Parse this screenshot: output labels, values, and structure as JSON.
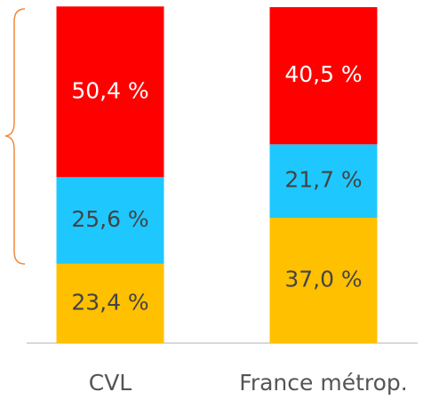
{
  "chart_data": {
    "type": "stacked_bar",
    "categories": [
      "CVL",
      "France métrop."
    ],
    "series": [
      {
        "color": "#ffc000",
        "label_color": "#444444",
        "values": [
          23.4,
          37.0
        ],
        "value_labels": [
          "23,4 %",
          "37,0 %"
        ]
      },
      {
        "color": "#1ec8ff",
        "label_color": "#444444",
        "values": [
          25.6,
          21.7
        ],
        "value_labels": [
          "25,6 %",
          "21,7 %"
        ]
      },
      {
        "color": "#ff0000",
        "label_color": "#ffffff",
        "values": [
          50.4,
          40.5
        ],
        "value_labels": [
          "50,4 %",
          "40,5 %"
        ]
      }
    ],
    "ylim": [
      0,
      100
    ]
  }
}
